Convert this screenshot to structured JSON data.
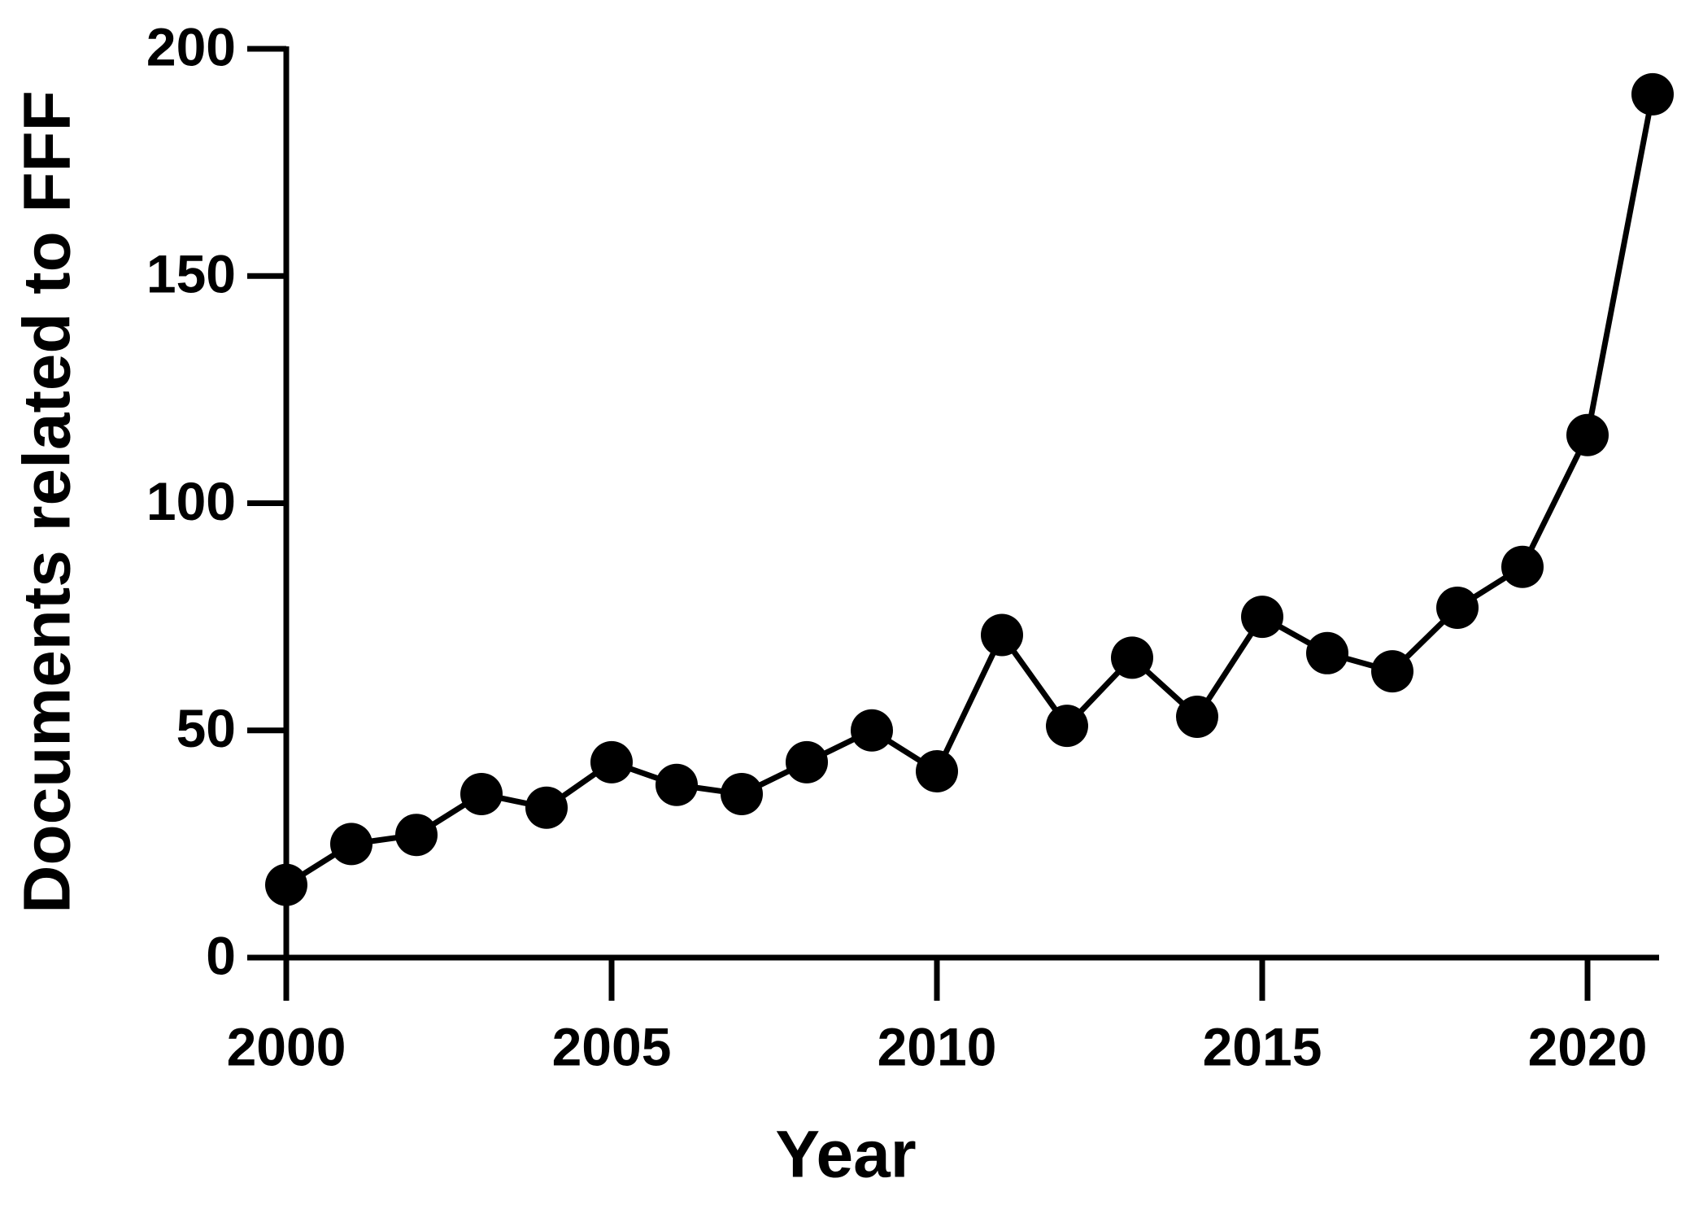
{
  "chart_data": {
    "type": "line",
    "x_label": "Year",
    "y_label": "Documents related to FFF",
    "x": [
      2000,
      2001,
      2002,
      2003,
      2004,
      2005,
      2006,
      2007,
      2008,
      2009,
      2010,
      2011,
      2012,
      2013,
      2014,
      2015,
      2016,
      2017,
      2018,
      2019,
      2020,
      2021
    ],
    "values": [
      16,
      25,
      27,
      36,
      33,
      43,
      38,
      36,
      43,
      50,
      41,
      71,
      51,
      66,
      53,
      75,
      67,
      63,
      77,
      86,
      115,
      190
    ],
    "color": "#000000",
    "xlim": [
      2000,
      2021.1
    ],
    "xticks": [
      2000,
      2005,
      2010,
      2015,
      2020
    ],
    "ylim": [
      0,
      200
    ],
    "yticks": [
      0,
      50,
      100,
      150,
      200
    ],
    "grid": false
  }
}
